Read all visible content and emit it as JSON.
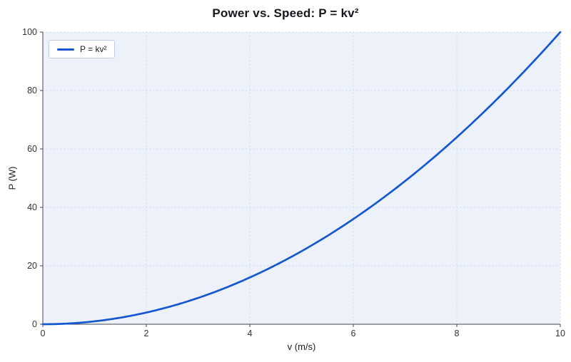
{
  "chart_data": {
    "type": "line",
    "title": "Power vs. Speed: P = kv²",
    "xlabel": "v (m/s)",
    "ylabel": "P (W)",
    "xlim": [
      0,
      10
    ],
    "ylim": [
      0,
      100
    ],
    "x_ticks": [
      0,
      2,
      4,
      6,
      8,
      10
    ],
    "y_ticks": [
      0,
      20,
      40,
      60,
      80,
      100
    ],
    "grid": true,
    "legend_position": "top-left",
    "plot_background": "#edf1fa",
    "grid_color": "#d3dcf0",
    "axis_color": "#44474f",
    "series": [
      {
        "name": "P = kv²",
        "color": "#1557d2",
        "k": 1,
        "x": [
          0,
          1,
          2,
          3,
          4,
          5,
          6,
          7,
          8,
          9,
          10
        ],
        "y": [
          0,
          1,
          4,
          9,
          16,
          25,
          36,
          49,
          64,
          81,
          100
        ]
      }
    ]
  }
}
